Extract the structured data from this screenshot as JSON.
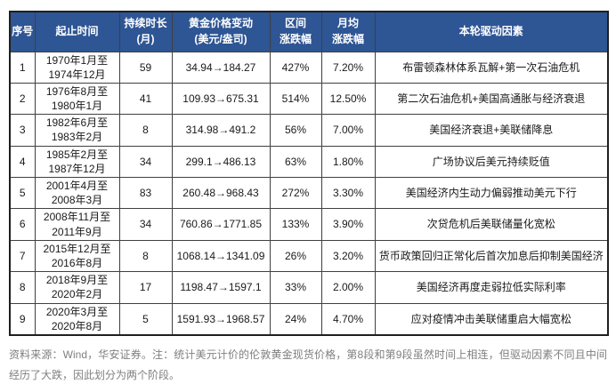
{
  "theme": {
    "header_bg": "#2E5594",
    "header_text": "#ffffff",
    "body_text": "#1a1a1a",
    "border": "#404040",
    "note_text": "#7f7f7f"
  },
  "table": {
    "headers": {
      "no": "序号",
      "period": "起止时间",
      "months": "持续时长\n(月)",
      "price": "黄金价格变动\n(美元/盎司)",
      "range": "区间\n涨跌幅",
      "monthly": "月均\n涨跌幅",
      "driver": "本轮驱动因素"
    },
    "rows": [
      {
        "no": "1",
        "period": "1970年1月至\n1974年12月",
        "months": "59",
        "price": "34.94→184.27",
        "range": "427%",
        "monthly": "7.20%",
        "driver": "布雷顿森林体系瓦解+第一次石油危机"
      },
      {
        "no": "2",
        "period": "1976年8月至\n1980年1月",
        "months": "41",
        "price": "109.93→675.31",
        "range": "514%",
        "monthly": "12.50%",
        "driver": "第二次石油危机+美国高通胀与经济衰退"
      },
      {
        "no": "3",
        "period": "1982年6月至\n1983年2月",
        "months": "8",
        "price": "314.98→491.2",
        "range": "56%",
        "monthly": "7.00%",
        "driver": "美国经济衰退+美联储降息"
      },
      {
        "no": "4",
        "period": "1985年2月至\n1987年12月",
        "months": "34",
        "price": "299.1→486.13",
        "range": "63%",
        "monthly": "1.80%",
        "driver": "广场协议后美元持续贬值"
      },
      {
        "no": "5",
        "period": "2001年4月至\n2008年3月",
        "months": "83",
        "price": "260.48→968.43",
        "range": "272%",
        "monthly": "3.30%",
        "driver": "美国经济内生动力偏弱推动美元下行"
      },
      {
        "no": "6",
        "period": "2008年11月至\n2011年9月",
        "months": "34",
        "price": "760.86→1771.85",
        "range": "133%",
        "monthly": "3.90%",
        "driver": "次贷危机后美联储量化宽松"
      },
      {
        "no": "7",
        "period": "2015年12月至\n2016年8月",
        "months": "8",
        "price": "1068.14→1341.09",
        "range": "26%",
        "monthly": "3.20%",
        "driver": "货币政策回归正常化后首次加息后抑制美国经济"
      },
      {
        "no": "8",
        "period": "2018年9月至\n2020年2月",
        "months": "17",
        "price": "1198.47→1597.1",
        "range": "33%",
        "monthly": "2.00%",
        "driver": "美国经济再度走弱拉低实际利率"
      },
      {
        "no": "9",
        "period": "2020年3月至\n2020年8月",
        "months": "5",
        "price": "1591.93→1968.57",
        "range": "24%",
        "monthly": "4.70%",
        "driver": "应对疫情冲击美联储重启大幅宽松"
      }
    ]
  },
  "footer": {
    "note": "资料来源：Wind，华安证券。注：统计美元计价的伦敦黄金现货价格，第8段和第9段虽然时间上相连，但驱动因素不同且中间经历了大跌，因此划分为两个阶段。"
  }
}
